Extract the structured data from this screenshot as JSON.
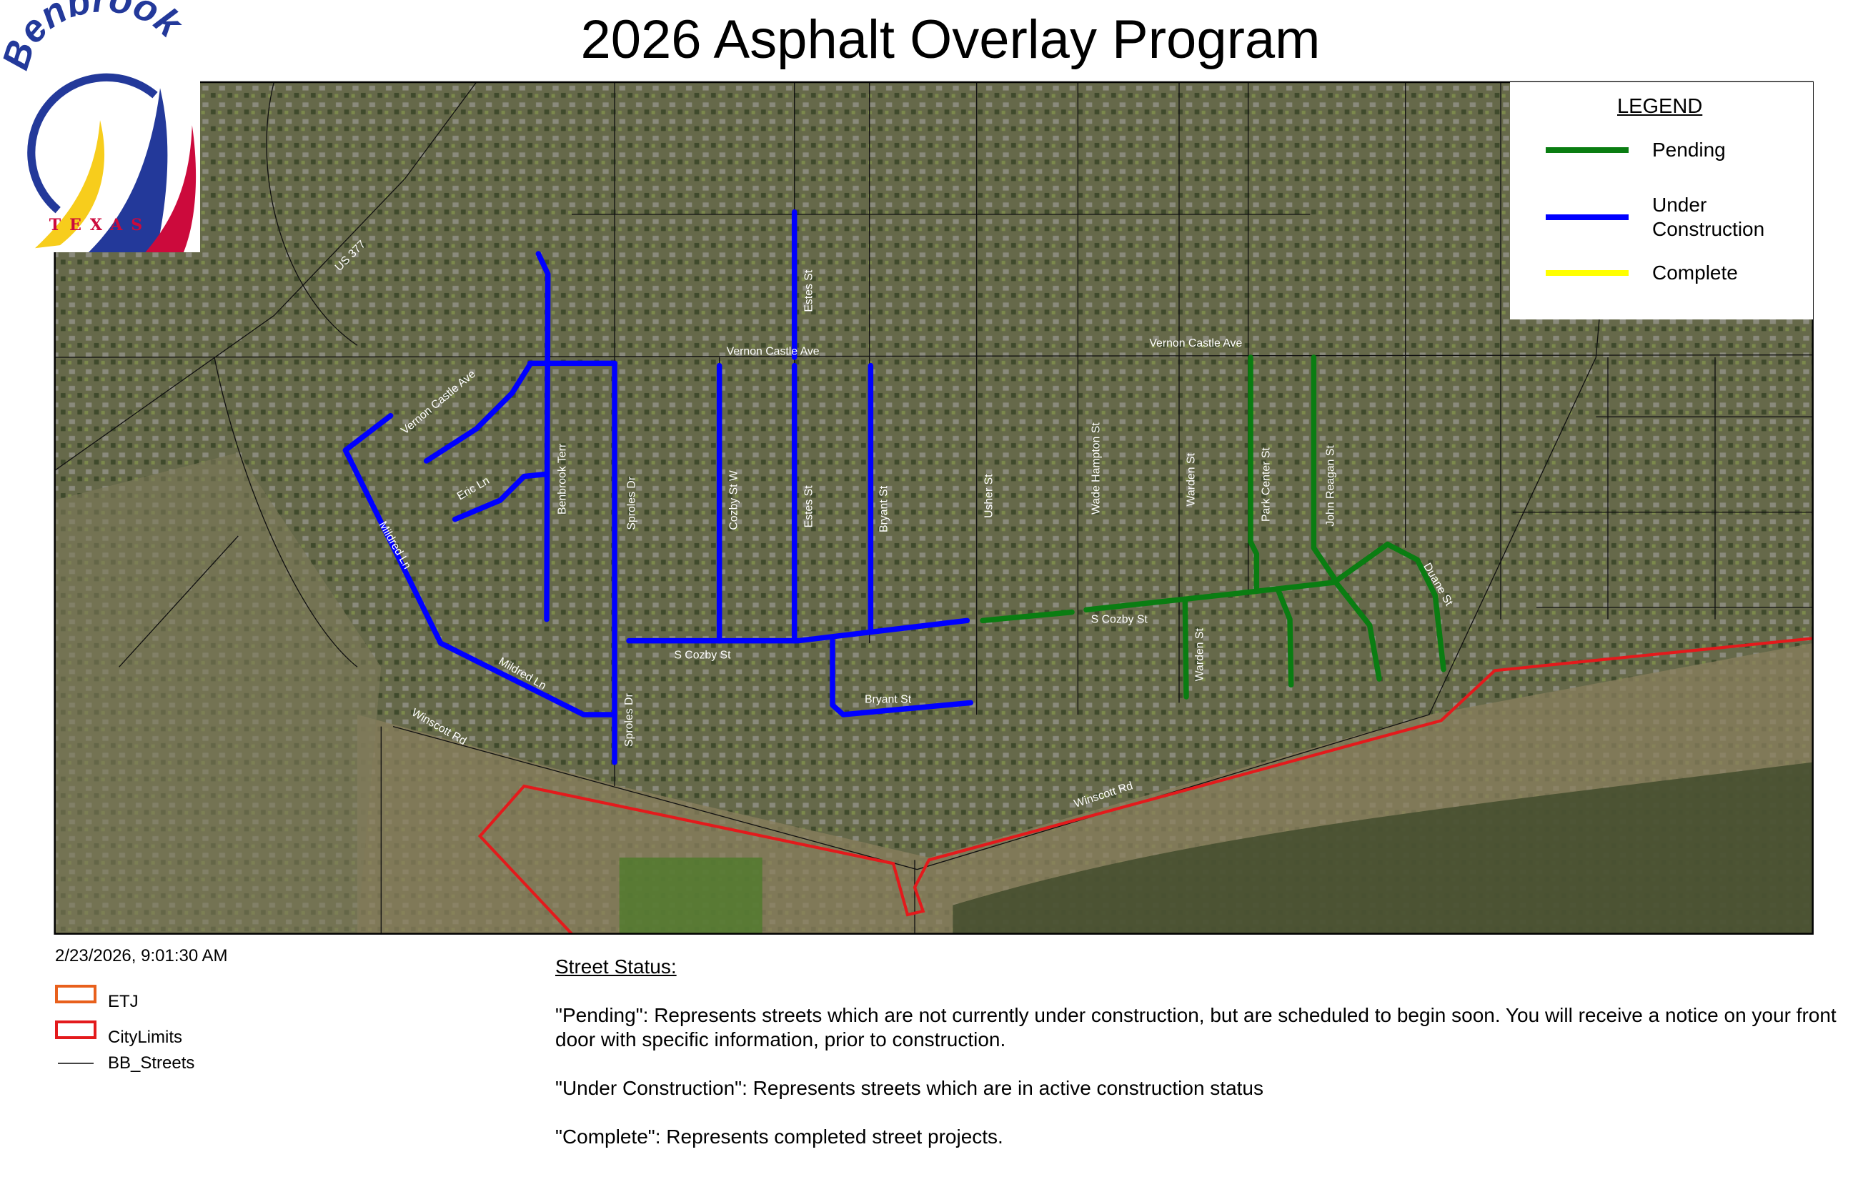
{
  "title": "2026 Asphalt Overlay Program",
  "logo": {
    "wordmark": "Benbrook",
    "state": "TEXAS"
  },
  "legend": {
    "title": "LEGEND",
    "items": [
      {
        "label": "Pending",
        "color": "#0a7d12"
      },
      {
        "label": "Under Construction",
        "color": "#0000ff"
      },
      {
        "label": "Complete",
        "color": "#ffff00"
      }
    ]
  },
  "timestamp": "2/23/2026, 9:01:30 AM",
  "layer_key": [
    {
      "label": "ETJ",
      "color": "#e8601c"
    },
    {
      "label": "CityLimits",
      "color": "#e31a1c"
    },
    {
      "label": "BB_Streets",
      "color": "#444444"
    }
  ],
  "street_status": {
    "heading": "Street Status:",
    "notes": [
      "\"Pending\": Represents streets which are not currently under construction, but are scheduled to begin soon. You will receive a notice on your front door with specific information, prior to construction.",
      "\"Under Construction\": Represents streets which are in active construction status",
      "\"Complete\": Represents completed street projects."
    ]
  },
  "map": {
    "labels": [
      {
        "name": "US 377"
      },
      {
        "name": "Vernon Castle Ave"
      },
      {
        "name": "Vernon Castle Ave"
      },
      {
        "name": "Vernon Castle Ave"
      },
      {
        "name": "Eric Ln"
      },
      {
        "name": "Mildred Ln"
      },
      {
        "name": "Mildred Ln"
      },
      {
        "name": "Benbrook Terr"
      },
      {
        "name": "Sproles Dr"
      },
      {
        "name": "Sproles Dr"
      },
      {
        "name": "Cozby St W"
      },
      {
        "name": "Estes St"
      },
      {
        "name": "Estes St"
      },
      {
        "name": "Bryant St"
      },
      {
        "name": "Bryant St"
      },
      {
        "name": "S Cozby St"
      },
      {
        "name": "S Cozby St"
      },
      {
        "name": "Usher St"
      },
      {
        "name": "Wade Hampton St"
      },
      {
        "name": "Warden St"
      },
      {
        "name": "Warden St"
      },
      {
        "name": "Park Center St"
      },
      {
        "name": "John Reagan St"
      },
      {
        "name": "Duane St"
      },
      {
        "name": "Winscott Rd"
      },
      {
        "name": "Winscott Rd"
      }
    ],
    "streets": [
      {
        "name": "Benbrook Terr",
        "status": "Under Construction"
      },
      {
        "name": "Vernon Castle Ave",
        "status": "Under Construction"
      },
      {
        "name": "Vernon Castle Ave (curve)",
        "status": "Under Construction"
      },
      {
        "name": "Eric Ln",
        "status": "Under Construction"
      },
      {
        "name": "Sproles Dr",
        "status": "Under Construction"
      },
      {
        "name": "Mildred Ln",
        "status": "Under Construction"
      },
      {
        "name": "S Cozby St (west)",
        "status": "Under Construction"
      },
      {
        "name": "Cozby St W",
        "status": "Under Construction"
      },
      {
        "name": "Estes St (north)",
        "status": "Under Construction"
      },
      {
        "name": "Estes St",
        "status": "Under Construction"
      },
      {
        "name": "Bryant St",
        "status": "Under Construction"
      },
      {
        "name": "Bryant St (south)",
        "status": "Under Construction"
      },
      {
        "name": "S Cozby St (east)",
        "status": "Pending"
      },
      {
        "name": "Warden St",
        "status": "Pending"
      },
      {
        "name": "Park Center St",
        "status": "Pending"
      },
      {
        "name": "John Reagan St",
        "status": "Pending"
      },
      {
        "name": "Unnamed spur A",
        "status": "Pending"
      },
      {
        "name": "Unnamed spur B",
        "status": "Pending"
      },
      {
        "name": "Duane St",
        "status": "Pending"
      }
    ]
  }
}
